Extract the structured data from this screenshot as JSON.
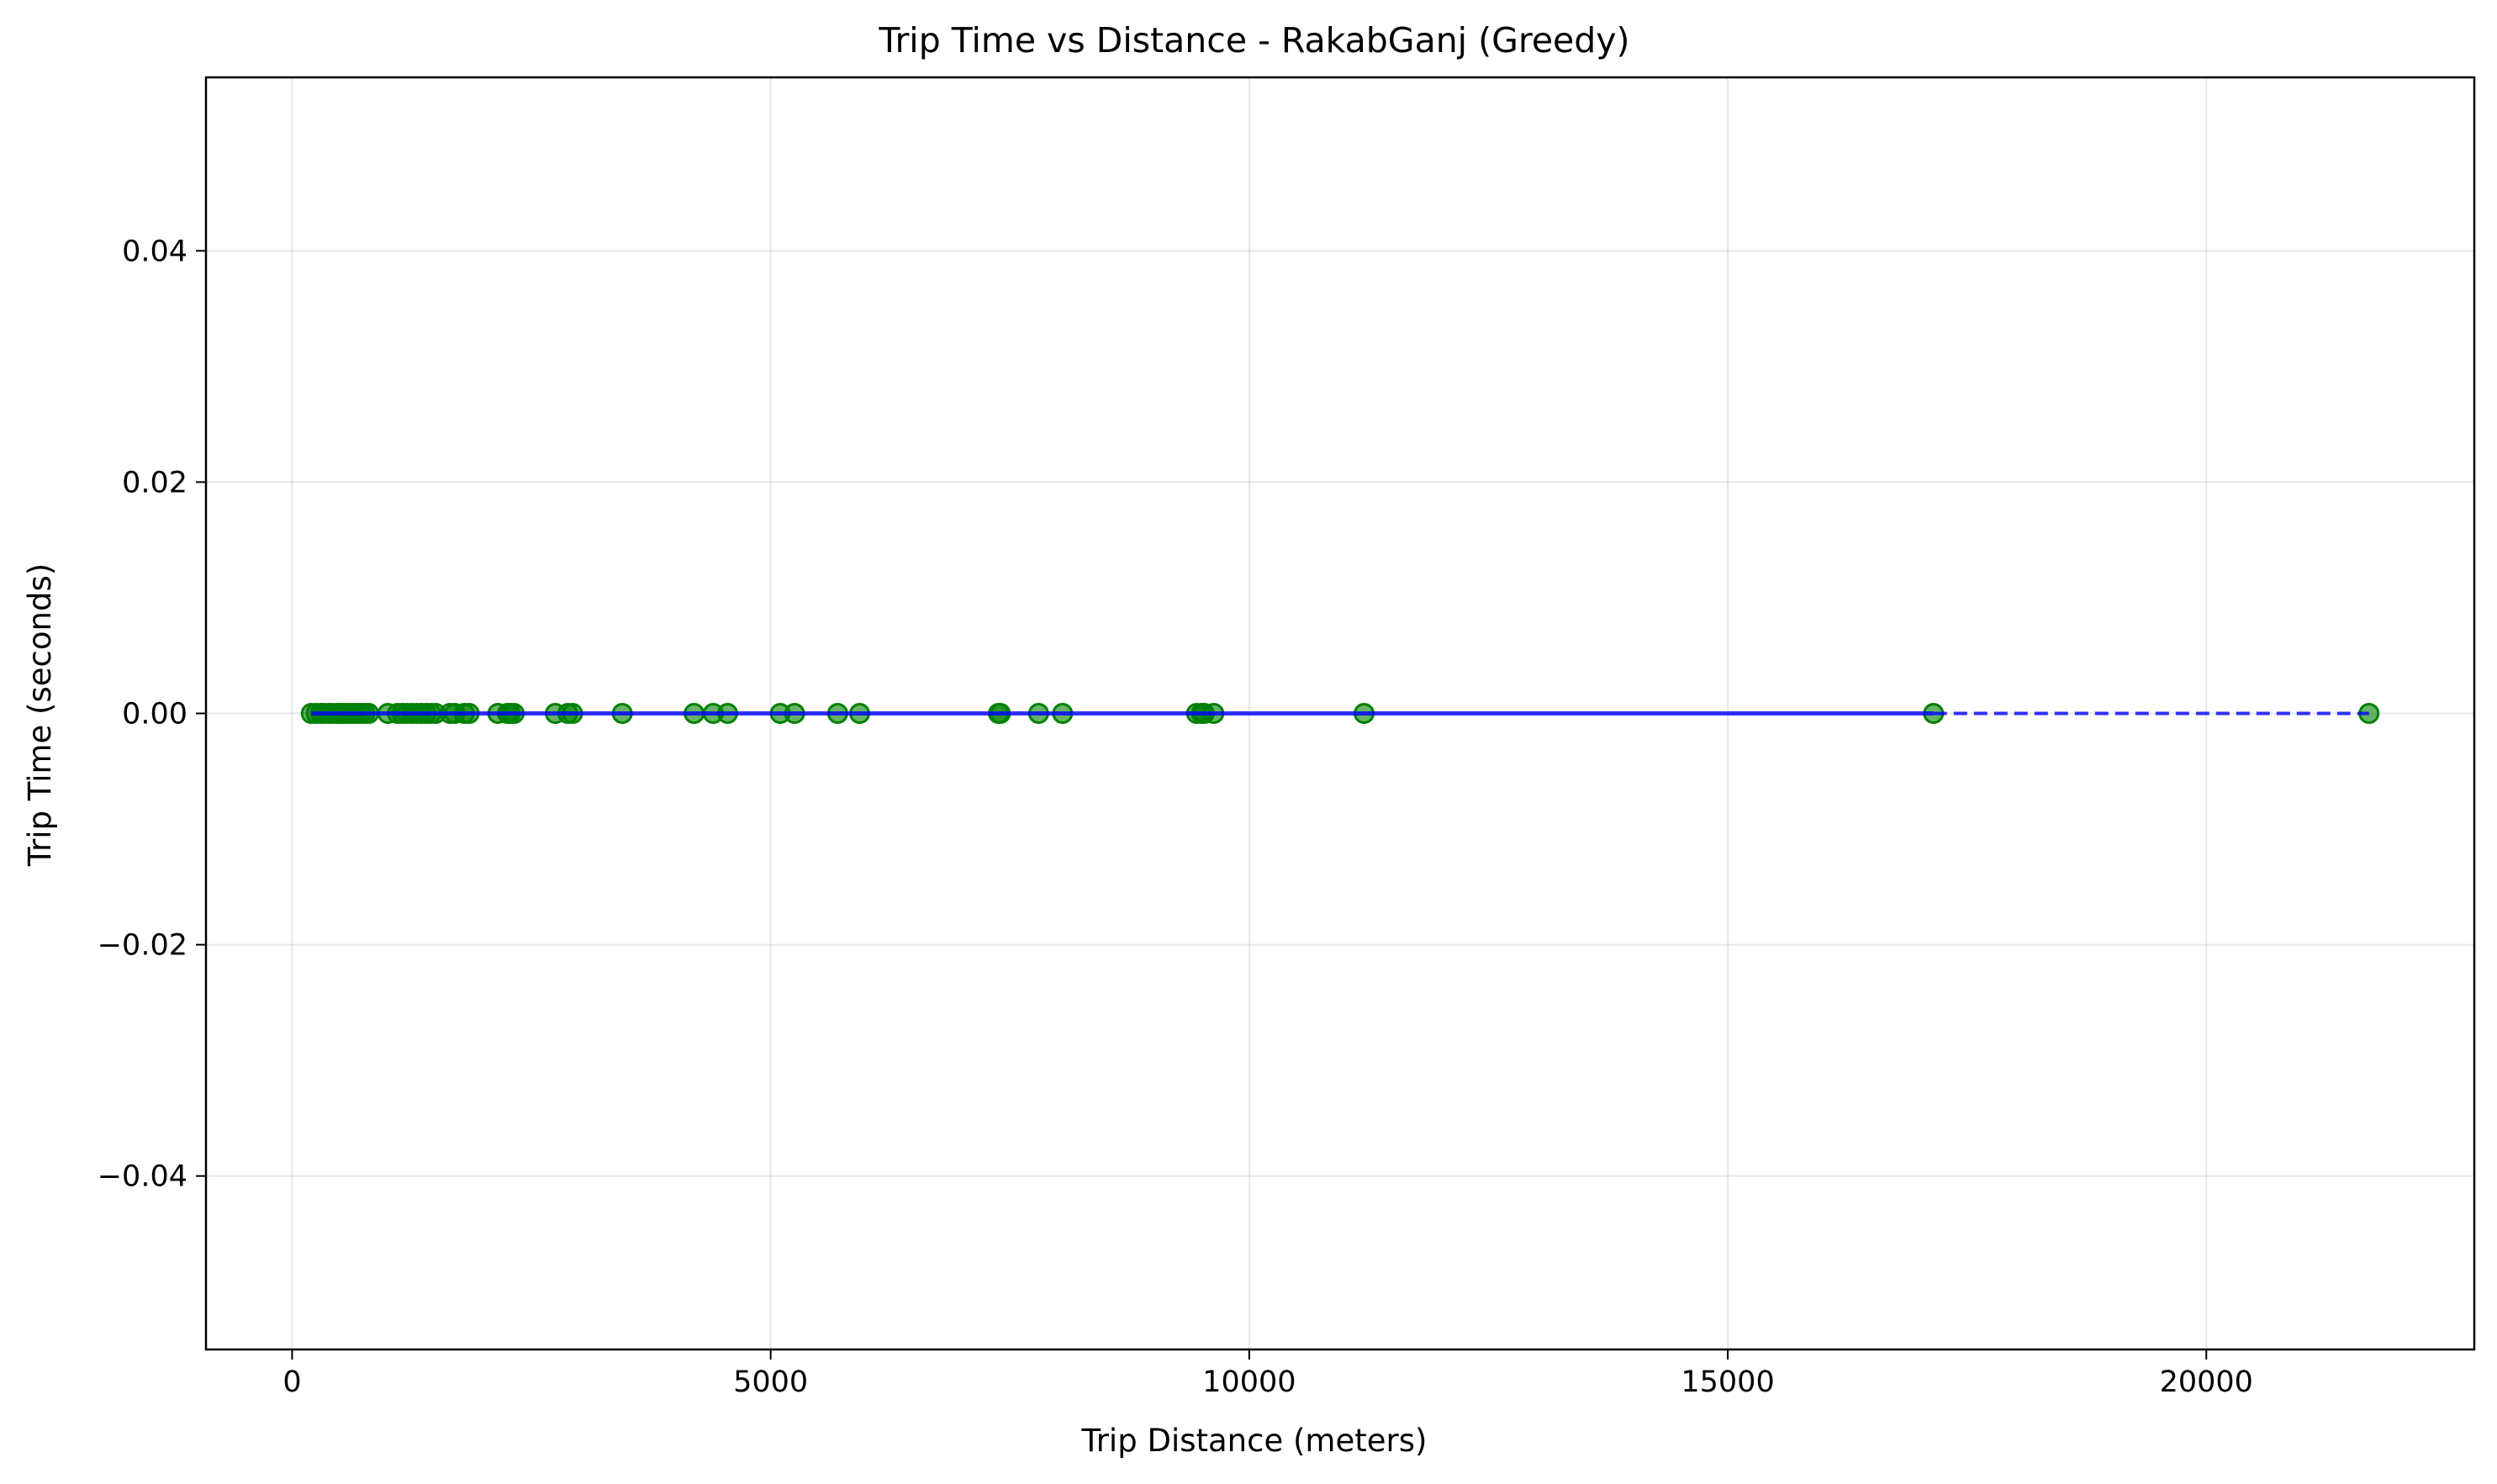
{
  "chart_data": {
    "type": "scatter",
    "title": "Trip Time vs Distance - RakabGanj (Greedy)",
    "xlabel": "Trip Distance (meters)",
    "ylabel": "Trip Time (seconds)",
    "xlim": [
      -900,
      22800
    ],
    "ylim": [
      -0.055,
      0.055
    ],
    "x_ticks": [
      0,
      5000,
      10000,
      15000,
      20000
    ],
    "x_tick_labels": [
      "0",
      "5000",
      "10000",
      "15000",
      "20000"
    ],
    "y_ticks": [
      0.04,
      0.02,
      0.0,
      -0.02,
      -0.04
    ],
    "y_tick_labels": [
      "0.04",
      "0.02",
      "0.00",
      "−0.02",
      "−0.04"
    ],
    "grid": true,
    "colors": {
      "points": "#008000",
      "line": "#0000ff"
    },
    "series": [
      {
        "kind": "points",
        "x": [
          200,
          250,
          300,
          330,
          380,
          420,
          470,
          500,
          520,
          560,
          600,
          640,
          680,
          720,
          760,
          800,
          1000,
          1100,
          1150,
          1200,
          1250,
          1300,
          1350,
          1400,
          1450,
          1500,
          1650,
          1700,
          1800,
          1850,
          2150,
          2250,
          2280,
          2320,
          2750,
          2880,
          2930,
          3450,
          4200,
          4400,
          4550,
          5100,
          5250,
          5700,
          5930,
          7380,
          7400,
          7800,
          8050,
          9450,
          9500,
          9530,
          9630,
          11200,
          17150,
          21700
        ],
        "y": [
          0,
          0,
          0,
          0,
          0,
          0,
          0,
          0,
          0,
          0,
          0,
          0,
          0,
          0,
          0,
          0,
          0,
          0,
          0,
          0,
          0,
          0,
          0,
          0,
          0,
          0,
          0,
          0,
          0,
          0,
          0,
          0,
          0,
          0,
          0,
          0,
          0,
          0,
          0,
          0,
          0,
          0,
          0,
          0,
          0,
          0,
          0,
          0,
          0,
          0,
          0,
          0,
          0,
          0,
          0,
          0
        ]
      },
      {
        "kind": "line",
        "x": [
          200,
          17150
        ],
        "y": [
          0,
          0
        ],
        "style": "solid"
      },
      {
        "kind": "line",
        "x": [
          17150,
          21700
        ],
        "y": [
          0,
          0
        ],
        "style": "dashed"
      }
    ]
  }
}
